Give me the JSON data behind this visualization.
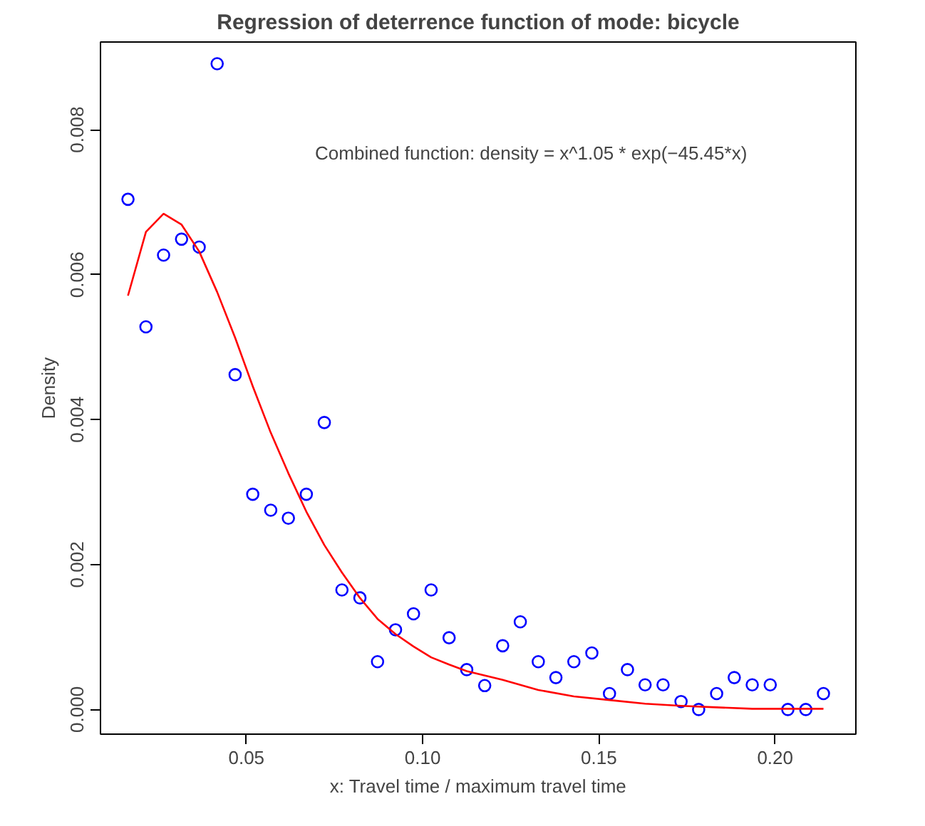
{
  "chart_data": {
    "type": "scatter",
    "title": "Regression of deterrence function of mode: bicycle",
    "xlabel": "x: Travel time / maximum travel time",
    "ylabel": "Density",
    "annotations": [
      "Combined function: density = x^1.05 * exp(−45.45*x)"
    ],
    "xlim": [
      0.0086,
      0.2229
    ],
    "ylim": [
      -0.00034,
      0.00921
    ],
    "xticks": [
      {
        "value": 0.05,
        "label": "0.05"
      },
      {
        "value": 0.1,
        "label": "0.10"
      },
      {
        "value": 0.15,
        "label": "0.15"
      },
      {
        "value": 0.2,
        "label": "0.20"
      }
    ],
    "yticks": [
      {
        "value": 0,
        "label": "0.000"
      },
      {
        "value": 0.002,
        "label": "0.002"
      },
      {
        "value": 0.004,
        "label": "0.004"
      },
      {
        "value": 0.006,
        "label": "0.006"
      },
      {
        "value": 0.008,
        "label": "0.008"
      }
    ],
    "grid": false,
    "series": [
      {
        "marker": "circle",
        "color": "#0000ff",
        "x": [
          0.0164,
          0.0215,
          0.0265,
          0.0316,
          0.0366,
          0.0417,
          0.0468,
          0.0518,
          0.0569,
          0.0619,
          0.067,
          0.0721,
          0.0771,
          0.0822,
          0.0872,
          0.0923,
          0.0974,
          0.1024,
          0.1075,
          0.1125,
          0.1176,
          0.1227,
          0.1277,
          0.1328,
          0.1378,
          0.1429,
          0.148,
          0.153,
          0.1581,
          0.1631,
          0.1682,
          0.1733,
          0.1783,
          0.1834,
          0.1884,
          0.1935,
          0.1986,
          0.2036,
          0.2087,
          0.2137
        ],
        "values": [
          0.00704,
          0.00528,
          0.00627,
          0.00649,
          0.00638,
          0.00891,
          0.00462,
          0.00297,
          0.00275,
          0.00264,
          0.00297,
          0.00396,
          0.00165,
          0.00154,
          0.00066,
          0.0011,
          0.00132,
          0.00165,
          0.00099,
          0.00055,
          0.00033,
          0.00088,
          0.00121,
          0.00066,
          0.00044,
          0.00066,
          0.00078,
          0.00022,
          0.00055,
          0.00034,
          0.00034,
          0.00011,
          0,
          0.00022,
          0.00044,
          0.00034,
          0.00034,
          0,
          0,
          0.00022
        ]
      },
      {
        "type": "line",
        "marker": "none",
        "color": "#ff0000",
        "x": [
          0.0164,
          0.0215,
          0.0265,
          0.0316,
          0.0366,
          0.0417,
          0.0468,
          0.0518,
          0.0569,
          0.0619,
          0.067,
          0.0721,
          0.0771,
          0.0822,
          0.0872,
          0.0923,
          0.0974,
          0.1024,
          0.1075,
          0.1125,
          0.1227,
          0.1328,
          0.1429,
          0.153,
          0.1631,
          0.1733,
          0.1834,
          0.1935,
          0.2036,
          0.2137
        ],
        "values": [
          0.00571,
          0.00659,
          0.00684,
          0.00669,
          0.00632,
          0.00576,
          0.00513,
          0.00446,
          0.00382,
          0.00326,
          0.00273,
          0.00227,
          0.00189,
          0.00154,
          0.00125,
          0.00104,
          0.00087,
          0.00072,
          0.00062,
          0.00053,
          0.00041,
          0.00027,
          0.00018,
          0.00013,
          8e-05,
          5e-05,
          3e-05,
          1e-05,
          1e-05,
          1e-05
        ]
      }
    ]
  }
}
